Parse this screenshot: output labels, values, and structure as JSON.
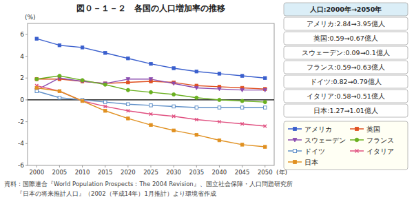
{
  "chart_data": {
    "type": "line",
    "title": "図０－１－２　各国の人口増加率の推移",
    "y_label": "(%)",
    "x_label": "(年)",
    "x": [
      2000,
      2005,
      2010,
      2015,
      2020,
      2025,
      2030,
      2035,
      2040,
      2045,
      2050
    ],
    "xlim": [
      1998,
      2052
    ],
    "xticks": [
      2000,
      2005,
      2010,
      2015,
      2020,
      2025,
      2030,
      2035,
      2040,
      2045,
      2050
    ],
    "ylim": [
      -6,
      7
    ],
    "yticks": [
      -6,
      -4,
      -2,
      0,
      2,
      4,
      6
    ],
    "grid": false,
    "legend": "right",
    "series": [
      {
        "name": "アメリカ",
        "color": "#3a5fcd",
        "marker": "square",
        "values": [
          5.6,
          5.0,
          4.8,
          4.3,
          3.8,
          3.3,
          2.9,
          2.6,
          2.4,
          2.2,
          2.0
        ]
      },
      {
        "name": "英国",
        "color": "#e05020",
        "marker": "square",
        "values": [
          1.9,
          1.9,
          1.7,
          1.5,
          1.6,
          1.7,
          1.6,
          1.3,
          1.2,
          1.1,
          1.0
        ]
      },
      {
        "name": "スウェーデン",
        "color": "#8b4db0",
        "marker": "triangle-down",
        "values": [
          0.9,
          2.0,
          1.7,
          1.5,
          1.9,
          1.9,
          1.5,
          1.1,
          1.0,
          0.9,
          0.9
        ]
      },
      {
        "name": "フランス",
        "color": "#6ab020",
        "marker": "circle",
        "values": [
          1.9,
          2.2,
          1.8,
          1.4,
          0.9,
          0.7,
          0.5,
          0.2,
          0.0,
          -0.1,
          -0.2
        ]
      },
      {
        "name": "ドイツ",
        "color": "#6090c8",
        "marker": "square-open",
        "values": [
          0.8,
          0.2,
          0.0,
          -0.2,
          -0.4,
          -0.5,
          -0.6,
          -0.7,
          -0.7,
          -0.7,
          -0.7
        ]
      },
      {
        "name": "イタリア",
        "color": "#e05080",
        "marker": "x",
        "values": [
          1.3,
          0.8,
          -0.1,
          -0.6,
          -1.0,
          -1.3,
          -1.5,
          -1.8,
          -2.0,
          -2.2,
          -2.4
        ]
      },
      {
        "name": "日本",
        "color": "#e09020",
        "marker": "square",
        "values": [
          1.1,
          0.8,
          -0.1,
          -1.0,
          -1.7,
          -2.3,
          -2.8,
          -3.2,
          -3.7,
          -4.1,
          -4.3
        ]
      }
    ],
    "annotations": [
      "人口:2000年→2050年",
      "アメリカ:2.84→3.95億人",
      "英国:0.59→0.67億人",
      "スウェーデン:0.09→0.1億人",
      "フランス:0.59→0.63億人",
      "ドイツ:0.82→0.79億人",
      "イタリア:0.58→0.51億人",
      "日本:1.27→1.01億人"
    ],
    "source": [
      "資料：国際連合『World Population Prospects：The 2004 Revision』、国立社会保障・人口問題研究所",
      "　　『日本の将来推計人口』（2002（平成14年）1月推計）より環境省作成"
    ]
  }
}
